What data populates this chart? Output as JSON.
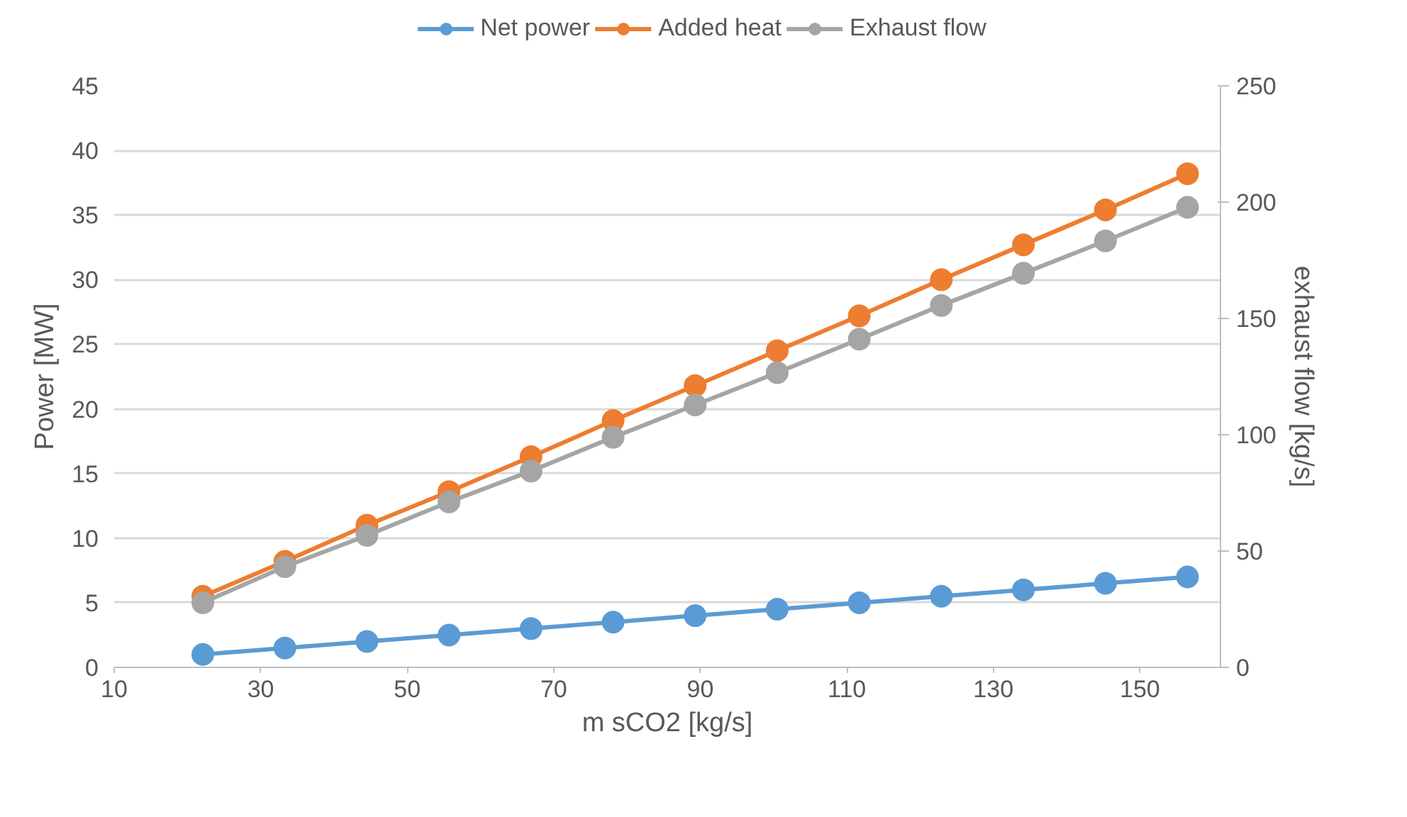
{
  "chart_data": {
    "type": "line",
    "xlabel": "m sCO2 [kg/s]",
    "ylabel": "Power [MW]",
    "y2label": "exhaust flow [kg/s]",
    "x": [
      22.1,
      33.3,
      44.5,
      55.7,
      66.9,
      78.1,
      89.3,
      100.5,
      111.7,
      122.9,
      134.1,
      145.3,
      156.5
    ],
    "series": [
      {
        "name": "Net power",
        "color": "#5b9bd5",
        "values": [
          1.0,
          1.5,
          2.0,
          2.5,
          3.0,
          3.5,
          4.0,
          4.5,
          5.0,
          5.5,
          6.0,
          6.5,
          7.0
        ]
      },
      {
        "name": "Added heat",
        "color": "#ed7d31",
        "values": [
          5.5,
          8.2,
          11.0,
          13.6,
          16.3,
          19.1,
          21.8,
          24.5,
          27.2,
          30.0,
          32.7,
          35.4,
          38.2
        ]
      },
      {
        "name": "Exhaust flow",
        "color": "#a5a5a5",
        "axis": "y2",
        "values": [
          27.8,
          43.3,
          56.7,
          71.1,
          84.4,
          98.9,
          112.8,
          126.7,
          141.1,
          155.6,
          169.4,
          183.3,
          197.8
        ]
      }
    ],
    "xlim": [
      10,
      161
    ],
    "xticks": [
      10,
      30,
      50,
      70,
      90,
      110,
      130,
      150
    ],
    "ylim": [
      0,
      45
    ],
    "yticks": [
      0,
      5,
      10,
      15,
      20,
      25,
      30,
      35,
      40,
      45
    ],
    "y2lim": [
      0,
      250
    ],
    "y2ticks": [
      0,
      50,
      100,
      150,
      200,
      250
    ],
    "grid": "y",
    "legend": "top",
    "marker": "circle",
    "line_style": "solid"
  }
}
